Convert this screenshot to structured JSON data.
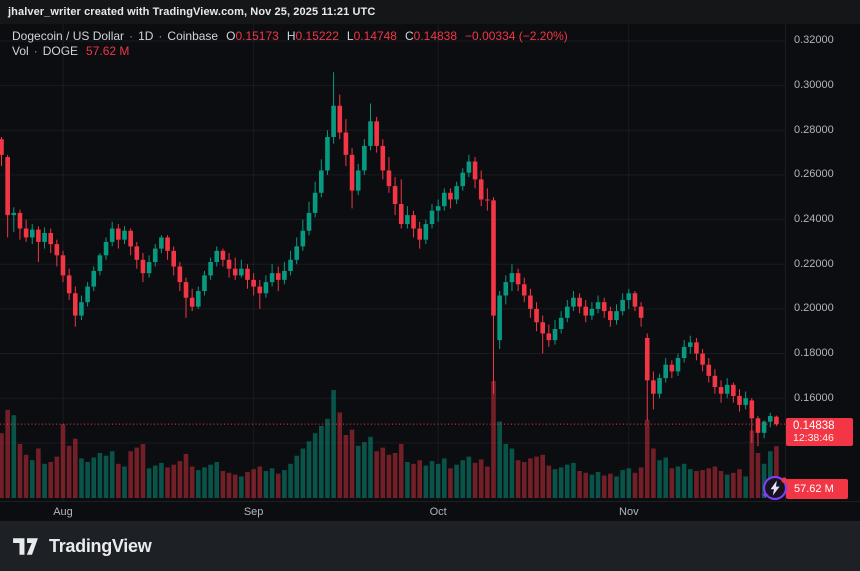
{
  "attribution": {
    "text": "jhalver_writer created with TradingView.com, Nov 25, 2025 11:21 UTC"
  },
  "header": {
    "title": "Dogecoin / US Dollar",
    "sep": "·",
    "interval": "1D",
    "exchange": "Coinbase",
    "ohlc": {
      "open": {
        "label": "O",
        "value": "0.15173"
      },
      "high": {
        "label": "H",
        "value": "0.15222"
      },
      "low": {
        "label": "L",
        "value": "0.14748"
      },
      "close": {
        "label": "C",
        "value": "0.14838"
      }
    },
    "change": "−0.00334 (−2.20%)",
    "volume_line": {
      "label": "Vol",
      "sep": "·",
      "currency": "DOGE",
      "value": "57.62 M"
    }
  },
  "price_axis": {
    "last_price_label": {
      "price": "0.14838",
      "countdown": "12:38:46"
    }
  },
  "volume_badge": {
    "value": "57.62 M"
  },
  "footer": {
    "brand": "TradingView"
  },
  "colors": {
    "up": "#089981",
    "down": "#f23645",
    "up_volume": "rgba(8,153,129,0.5)",
    "down_volume": "rgba(242,54,69,0.45)",
    "grid": "rgba(255,255,255,0.06)",
    "axis_text": "#b2b5be",
    "accent_purple": "#7e3ff2",
    "label_bg": "#f23645"
  },
  "chart_data": {
    "type": "candlestick+volume",
    "title": "Dogecoin / US Dollar",
    "exchange": "Coinbase",
    "interval": "1D",
    "start_date": "2025-07-22",
    "end_date": "2025-11-25",
    "price_range": [
      0.105,
      0.3276
    ],
    "y_ticks": [
      "0.32000",
      "0.30000",
      "0.28000",
      "0.26000",
      "0.24000",
      "0.22000",
      "0.20000",
      "0.18000",
      "0.16000",
      "0.14000"
    ],
    "months": [
      {
        "label": "Aug",
        "candle_index": 10
      },
      {
        "label": "Sep",
        "candle_index": 41
      },
      {
        "label": "Oct",
        "candle_index": 71
      },
      {
        "label": "Nov",
        "candle_index": 102
      }
    ],
    "last_close": 0.14838,
    "last_volume_millions": 57.62,
    "volume_unit": "M",
    "candle_order": [
      "open",
      "high",
      "low",
      "close",
      "volume_millions"
    ],
    "candles": [
      [
        0.276,
        0.277,
        0.264,
        0.269,
        72
      ],
      [
        0.268,
        0.269,
        0.232,
        0.242,
        98
      ],
      [
        0.242,
        0.2455,
        0.2345,
        0.243,
        92
      ],
      [
        0.243,
        0.2445,
        0.231,
        0.236,
        60
      ],
      [
        0.236,
        0.24,
        0.23,
        0.232,
        48
      ],
      [
        0.232,
        0.238,
        0.229,
        0.2355,
        42
      ],
      [
        0.2355,
        0.237,
        0.221,
        0.23,
        55
      ],
      [
        0.23,
        0.2365,
        0.227,
        0.234,
        38
      ],
      [
        0.234,
        0.236,
        0.225,
        0.229,
        40
      ],
      [
        0.229,
        0.231,
        0.219,
        0.224,
        46
      ],
      [
        0.224,
        0.226,
        0.212,
        0.215,
        82
      ],
      [
        0.215,
        0.218,
        0.204,
        0.207,
        58
      ],
      [
        0.207,
        0.21,
        0.192,
        0.197,
        66
      ],
      [
        0.197,
        0.206,
        0.195,
        0.203,
        44
      ],
      [
        0.203,
        0.212,
        0.201,
        0.21,
        40
      ],
      [
        0.21,
        0.219,
        0.208,
        0.217,
        45
      ],
      [
        0.217,
        0.225,
        0.215,
        0.224,
        50
      ],
      [
        0.224,
        0.232,
        0.222,
        0.23,
        47
      ],
      [
        0.23,
        0.239,
        0.228,
        0.236,
        52
      ],
      [
        0.236,
        0.238,
        0.227,
        0.231,
        38
      ],
      [
        0.231,
        0.237,
        0.229,
        0.235,
        35
      ],
      [
        0.235,
        0.236,
        0.224,
        0.228,
        52
      ],
      [
        0.228,
        0.23,
        0.218,
        0.222,
        56
      ],
      [
        0.222,
        0.225,
        0.212,
        0.216,
        60
      ],
      [
        0.216,
        0.224,
        0.214,
        0.221,
        33
      ],
      [
        0.221,
        0.229,
        0.219,
        0.227,
        36
      ],
      [
        0.227,
        0.233,
        0.225,
        0.232,
        39
      ],
      [
        0.232,
        0.233,
        0.222,
        0.226,
        34
      ],
      [
        0.226,
        0.228,
        0.215,
        0.219,
        37
      ],
      [
        0.219,
        0.221,
        0.208,
        0.212,
        41
      ],
      [
        0.212,
        0.214,
        0.196,
        0.205,
        49
      ],
      [
        0.205,
        0.209,
        0.199,
        0.201,
        35
      ],
      [
        0.201,
        0.21,
        0.2,
        0.208,
        31
      ],
      [
        0.208,
        0.217,
        0.206,
        0.215,
        34
      ],
      [
        0.215,
        0.223,
        0.213,
        0.221,
        37
      ],
      [
        0.221,
        0.228,
        0.219,
        0.226,
        40
      ],
      [
        0.226,
        0.227,
        0.219,
        0.222,
        30
      ],
      [
        0.222,
        0.225,
        0.214,
        0.218,
        28
      ],
      [
        0.218,
        0.223,
        0.213,
        0.215,
        26
      ],
      [
        0.215,
        0.222,
        0.214,
        0.218,
        24
      ],
      [
        0.218,
        0.22,
        0.209,
        0.213,
        29
      ],
      [
        0.213,
        0.216,
        0.206,
        0.21,
        32
      ],
      [
        0.21,
        0.213,
        0.2,
        0.207,
        35
      ],
      [
        0.207,
        0.215,
        0.205,
        0.212,
        30
      ],
      [
        0.212,
        0.22,
        0.21,
        0.216,
        33
      ],
      [
        0.216,
        0.219,
        0.208,
        0.213,
        27
      ],
      [
        0.213,
        0.221,
        0.211,
        0.217,
        31
      ],
      [
        0.217,
        0.226,
        0.215,
        0.222,
        38
      ],
      [
        0.222,
        0.232,
        0.22,
        0.228,
        47
      ],
      [
        0.228,
        0.24,
        0.226,
        0.235,
        55
      ],
      [
        0.235,
        0.248,
        0.233,
        0.243,
        63
      ],
      [
        0.243,
        0.257,
        0.241,
        0.252,
        72
      ],
      [
        0.252,
        0.267,
        0.25,
        0.262,
        80
      ],
      [
        0.262,
        0.28,
        0.26,
        0.277,
        88
      ],
      [
        0.277,
        0.306,
        0.274,
        0.291,
        120
      ],
      [
        0.291,
        0.296,
        0.276,
        0.279,
        95
      ],
      [
        0.279,
        0.285,
        0.264,
        0.269,
        70
      ],
      [
        0.269,
        0.272,
        0.245,
        0.253,
        76
      ],
      [
        0.253,
        0.265,
        0.251,
        0.262,
        58
      ],
      [
        0.262,
        0.276,
        0.26,
        0.273,
        62
      ],
      [
        0.273,
        0.292,
        0.271,
        0.284,
        68
      ],
      [
        0.284,
        0.286,
        0.27,
        0.273,
        52
      ],
      [
        0.273,
        0.276,
        0.258,
        0.262,
        56
      ],
      [
        0.262,
        0.268,
        0.252,
        0.255,
        48
      ],
      [
        0.255,
        0.259,
        0.242,
        0.247,
        50
      ],
      [
        0.247,
        0.258,
        0.236,
        0.238,
        60
      ],
      [
        0.238,
        0.246,
        0.236,
        0.242,
        40
      ],
      [
        0.242,
        0.244,
        0.232,
        0.236,
        38
      ],
      [
        0.236,
        0.239,
        0.227,
        0.231,
        42
      ],
      [
        0.231,
        0.24,
        0.229,
        0.238,
        36
      ],
      [
        0.238,
        0.247,
        0.236,
        0.244,
        41
      ],
      [
        0.244,
        0.249,
        0.239,
        0.246,
        38
      ],
      [
        0.246,
        0.254,
        0.244,
        0.252,
        44
      ],
      [
        0.252,
        0.254,
        0.245,
        0.249,
        33
      ],
      [
        0.249,
        0.257,
        0.247,
        0.255,
        37
      ],
      [
        0.255,
        0.263,
        0.253,
        0.261,
        42
      ],
      [
        0.261,
        0.269,
        0.259,
        0.266,
        46
      ],
      [
        0.266,
        0.268,
        0.254,
        0.258,
        39
      ],
      [
        0.258,
        0.262,
        0.246,
        0.249,
        43
      ],
      [
        0.249,
        0.254,
        0.244,
        0.2486,
        35
      ],
      [
        0.2486,
        0.25,
        0.162,
        0.197,
        130
      ],
      [
        0.186,
        0.208,
        0.182,
        0.206,
        85
      ],
      [
        0.206,
        0.215,
        0.202,
        0.212,
        60
      ],
      [
        0.212,
        0.22,
        0.208,
        0.216,
        55
      ],
      [
        0.216,
        0.218,
        0.208,
        0.211,
        42
      ],
      [
        0.211,
        0.214,
        0.203,
        0.206,
        40
      ],
      [
        0.206,
        0.209,
        0.196,
        0.2,
        44
      ],
      [
        0.2,
        0.203,
        0.19,
        0.194,
        46
      ],
      [
        0.194,
        0.197,
        0.18,
        0.189,
        48
      ],
      [
        0.189,
        0.193,
        0.183,
        0.186,
        36
      ],
      [
        0.186,
        0.195,
        0.184,
        0.191,
        32
      ],
      [
        0.191,
        0.199,
        0.189,
        0.196,
        34
      ],
      [
        0.196,
        0.204,
        0.194,
        0.201,
        37
      ],
      [
        0.201,
        0.208,
        0.199,
        0.205,
        39
      ],
      [
        0.205,
        0.207,
        0.198,
        0.201,
        30
      ],
      [
        0.201,
        0.204,
        0.194,
        0.197,
        28
      ],
      [
        0.197,
        0.203,
        0.195,
        0.2,
        26
      ],
      [
        0.2,
        0.206,
        0.198,
        0.203,
        29
      ],
      [
        0.203,
        0.205,
        0.196,
        0.199,
        25
      ],
      [
        0.199,
        0.201,
        0.192,
        0.195,
        27
      ],
      [
        0.195,
        0.202,
        0.193,
        0.199,
        24
      ],
      [
        0.199,
        0.207,
        0.197,
        0.204,
        31
      ],
      [
        0.204,
        0.209,
        0.2,
        0.207,
        33
      ],
      [
        0.207,
        0.208,
        0.199,
        0.201,
        28
      ],
      [
        0.201,
        0.203,
        0.192,
        0.196,
        34
      ],
      [
        0.187,
        0.189,
        0.15,
        0.168,
        87
      ],
      [
        0.168,
        0.172,
        0.155,
        0.162,
        55
      ],
      [
        0.162,
        0.171,
        0.16,
        0.169,
        42
      ],
      [
        0.169,
        0.178,
        0.167,
        0.175,
        45
      ],
      [
        0.175,
        0.177,
        0.169,
        0.172,
        33
      ],
      [
        0.172,
        0.18,
        0.17,
        0.178,
        35
      ],
      [
        0.178,
        0.186,
        0.176,
        0.183,
        38
      ],
      [
        0.183,
        0.188,
        0.18,
        0.185,
        32
      ],
      [
        0.185,
        0.187,
        0.177,
        0.18,
        30
      ],
      [
        0.18,
        0.182,
        0.172,
        0.175,
        31
      ],
      [
        0.175,
        0.178,
        0.167,
        0.17,
        33
      ],
      [
        0.17,
        0.173,
        0.162,
        0.165,
        35
      ],
      [
        0.165,
        0.168,
        0.158,
        0.162,
        30
      ],
      [
        0.162,
        0.169,
        0.16,
        0.166,
        26
      ],
      [
        0.166,
        0.167,
        0.158,
        0.161,
        28
      ],
      [
        0.161,
        0.164,
        0.154,
        0.157,
        32
      ],
      [
        0.157,
        0.163,
        0.155,
        0.16,
        24
      ],
      [
        0.159,
        0.16,
        0.14,
        0.151,
        75
      ],
      [
        0.151,
        0.152,
        0.1385,
        0.1445,
        50
      ],
      [
        0.1445,
        0.15,
        0.142,
        0.1495,
        38
      ],
      [
        0.1495,
        0.1535,
        0.147,
        0.152,
        52
      ],
      [
        0.15173,
        0.15222,
        0.14748,
        0.14838,
        57.62
      ]
    ]
  }
}
